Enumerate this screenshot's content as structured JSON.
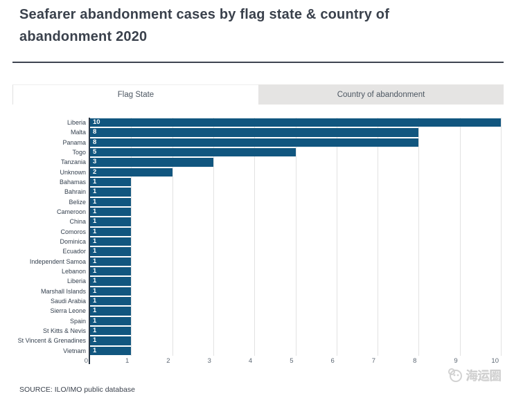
{
  "title": {
    "line1": "Seafarer abandonment cases by flag state & country of",
    "line2": "abandonment 2020",
    "full": "Seafarer abandonment cases by flag state & country of abandonment 2020"
  },
  "tabs": [
    {
      "label": "Flag State",
      "active": true
    },
    {
      "label": "Country of abandonment",
      "active": false
    }
  ],
  "source": "SOURCE: ILO/IMO public database",
  "watermark": {
    "text": "海运圈"
  },
  "colors": {
    "bar": "#11567f",
    "axis": "#2b3947",
    "gridline": "#e2e2e2",
    "title_text": "#3a414c",
    "tab_inactive_bg": "#e5e4e3"
  },
  "chart_data": {
    "type": "bar",
    "orientation": "horizontal",
    "title": "Seafarer abandonment cases by flag state & country of abandonment 2020",
    "categories": [
      "Liberia",
      "Malta",
      "Panama",
      "Togo",
      "Tanzania",
      "Unknown",
      "Bahamas",
      "Bahrain",
      "Belize",
      "Cameroon",
      "China",
      "Comoros",
      "Dominica",
      "Ecuador",
      "Independent Samoa",
      "Lebanon",
      "Liberia",
      "Marshall Islands",
      "Saudi Arabia",
      "Sierra Leone",
      "Spain",
      "St Kitts & Nevis",
      "St Vincent & Grenadines",
      "Vietnam"
    ],
    "values": [
      10,
      8,
      8,
      5,
      3,
      2,
      1,
      1,
      1,
      1,
      1,
      1,
      1,
      1,
      1,
      1,
      1,
      1,
      1,
      1,
      1,
      1,
      1,
      1
    ],
    "xlabel": "",
    "ylabel": "",
    "xlim": [
      0,
      10
    ],
    "xticks": [
      0,
      1,
      2,
      3,
      4,
      5,
      6,
      7,
      8,
      9,
      10
    ],
    "grid": true,
    "value_labels_position": "inside-left"
  }
}
